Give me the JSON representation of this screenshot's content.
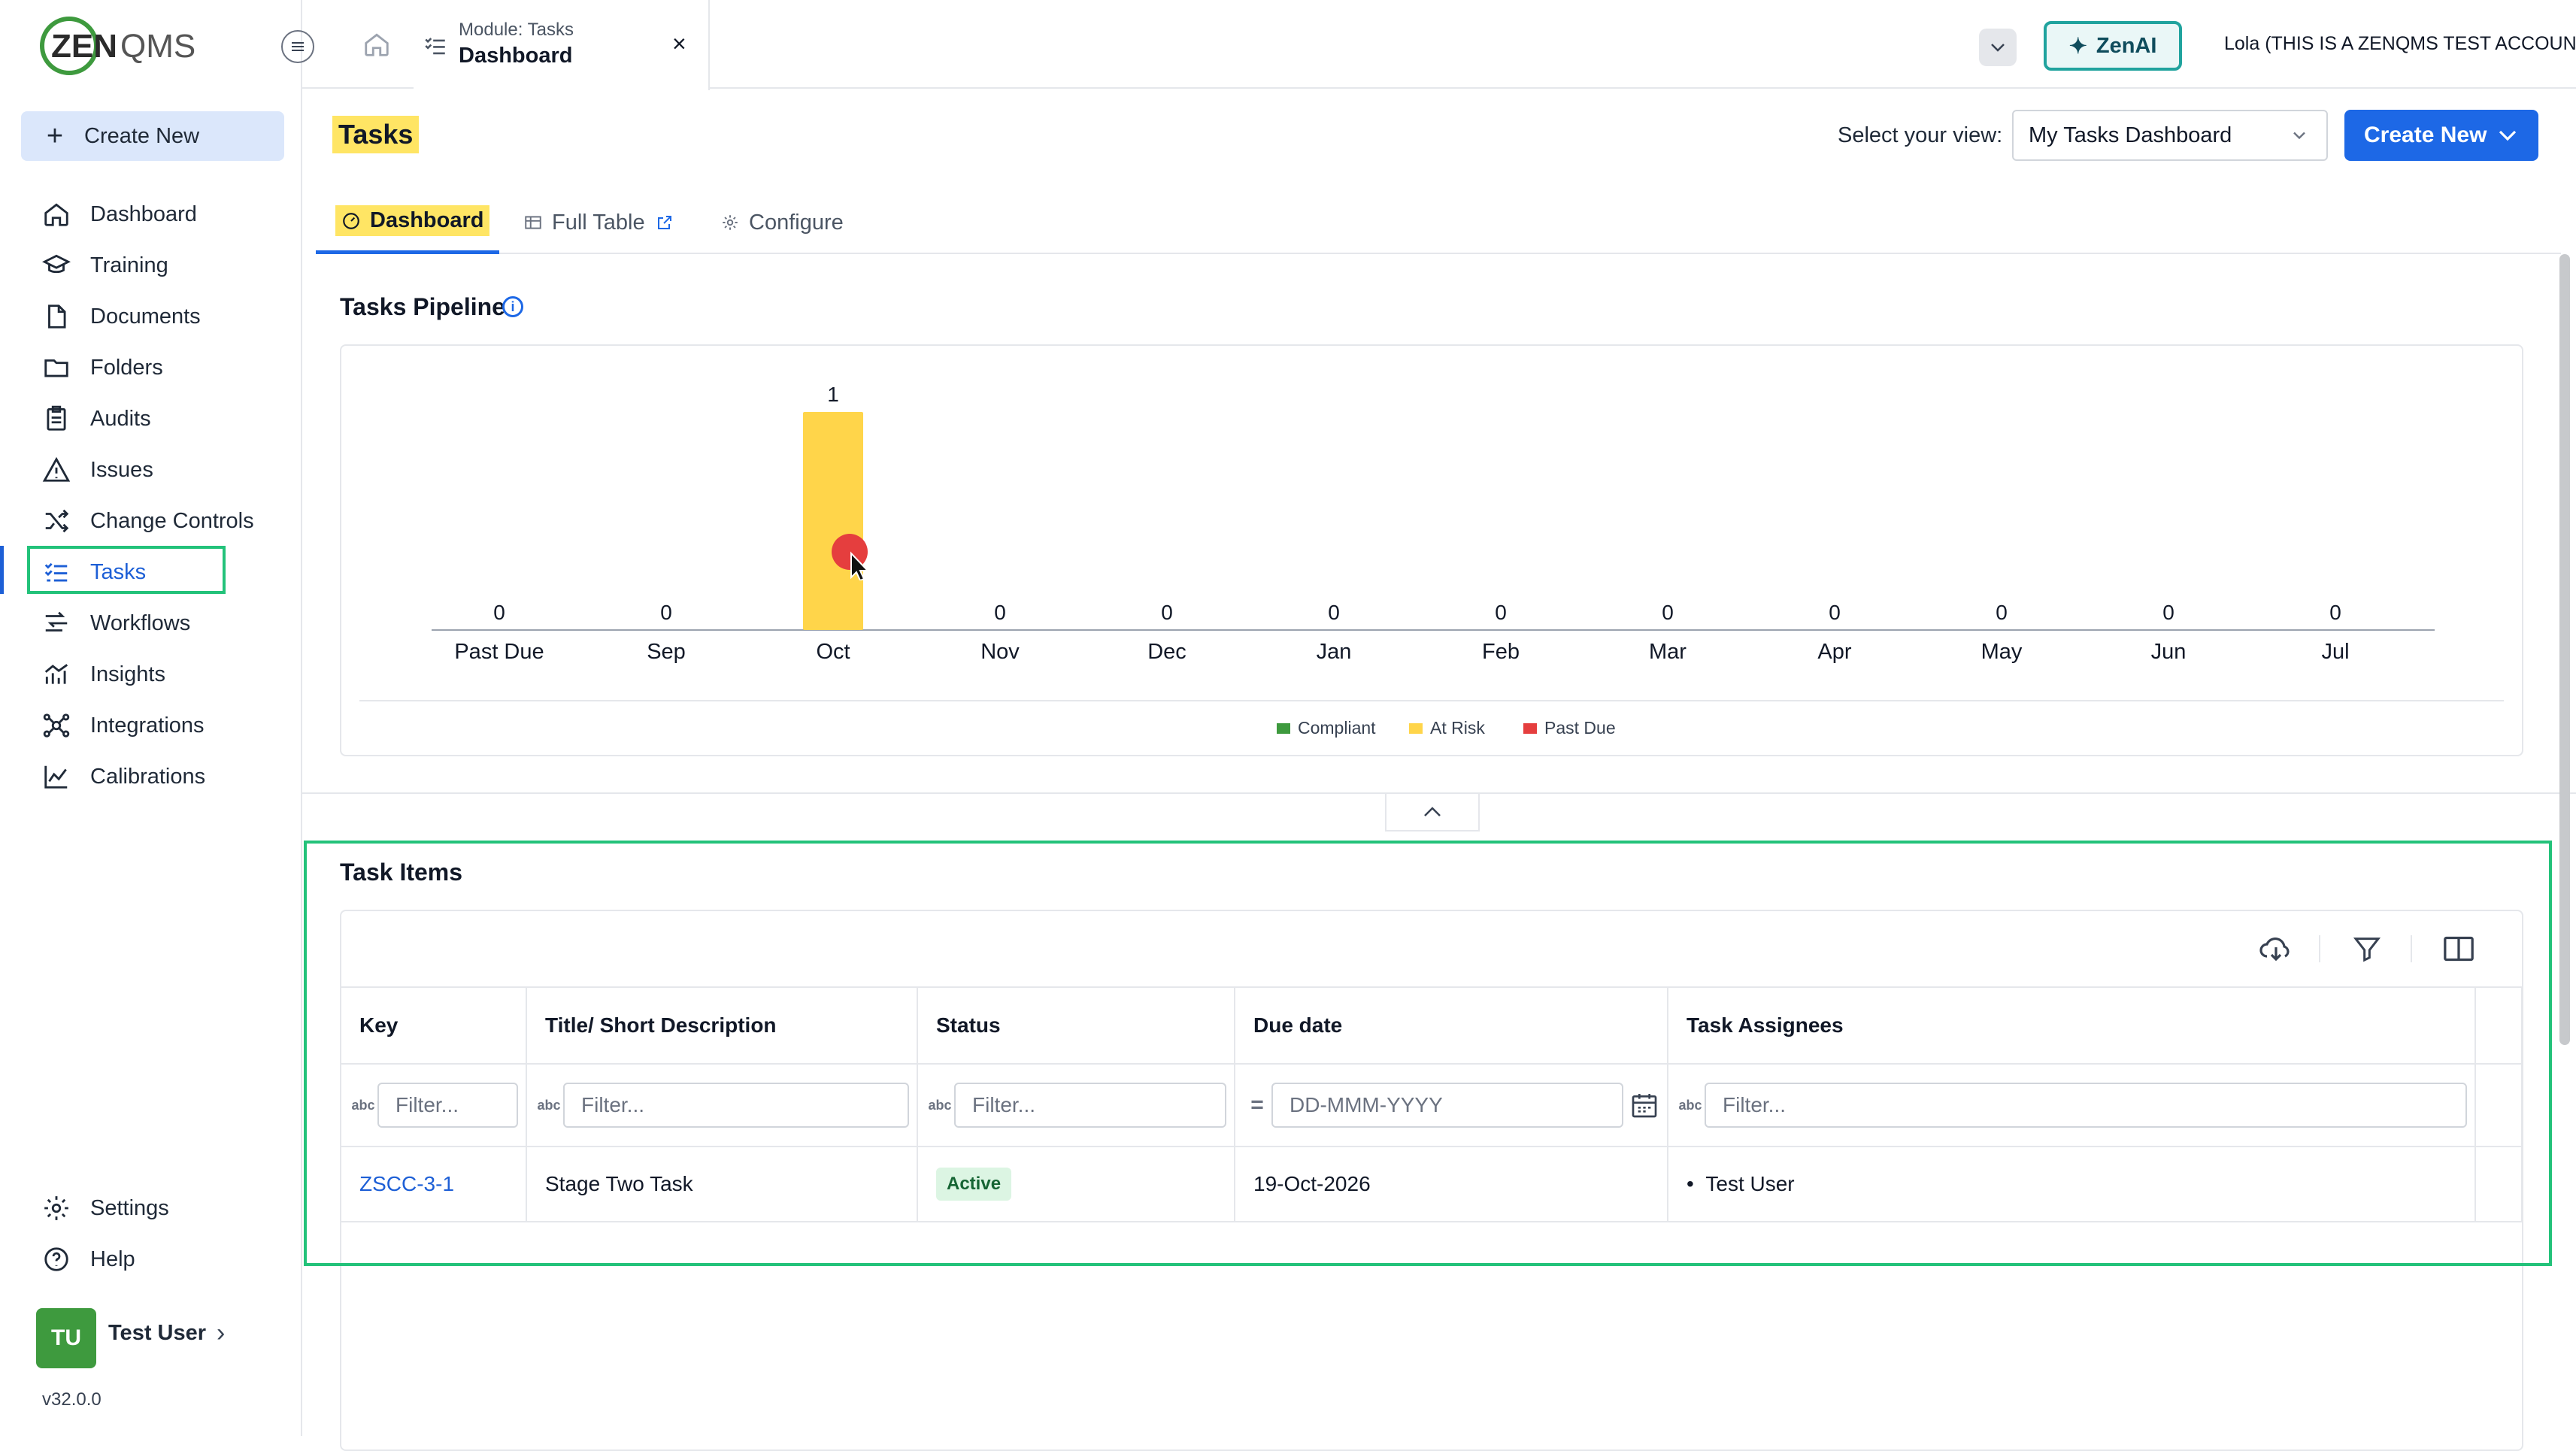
{
  "app": {
    "logo_text": "ZENQMS",
    "version": "v32.0.0"
  },
  "sidebar": {
    "create_new": "Create New",
    "items": [
      {
        "label": "Dashboard",
        "icon": "home-icon"
      },
      {
        "label": "Training",
        "icon": "graduation-cap-icon"
      },
      {
        "label": "Documents",
        "icon": "document-icon"
      },
      {
        "label": "Folders",
        "icon": "folder-icon"
      },
      {
        "label": "Audits",
        "icon": "clipboard-icon"
      },
      {
        "label": "Issues",
        "icon": "warning-icon"
      },
      {
        "label": "Change Controls",
        "icon": "shuffle-icon"
      },
      {
        "label": "Tasks",
        "icon": "task-list-icon",
        "active": true
      },
      {
        "label": "Workflows",
        "icon": "workflow-icon"
      },
      {
        "label": "Insights",
        "icon": "insights-icon"
      },
      {
        "label": "Integrations",
        "icon": "integrations-icon"
      },
      {
        "label": "Calibrations",
        "icon": "calibration-chart-icon"
      }
    ],
    "settings": "Settings",
    "help": "Help",
    "user": {
      "initials": "TU",
      "name": "Test User"
    }
  },
  "topbar": {
    "tab_module": "Module: Tasks",
    "tab_name": "Dashboard",
    "zenai": "ZenAI",
    "account": "Lola (THIS IS A ZENQMS TEST ACCOUNT)"
  },
  "header": {
    "title": "Tasks",
    "view_label": "Select your view:",
    "view_value": "My Tasks Dashboard",
    "create_new": "Create New"
  },
  "tabs": [
    {
      "label": "Dashboard",
      "active": true
    },
    {
      "label": "Full Table"
    },
    {
      "label": "Configure"
    }
  ],
  "pipeline": {
    "title": "Tasks Pipeline"
  },
  "chart_data": {
    "type": "bar",
    "categories": [
      "Past Due",
      "Sep",
      "Oct",
      "Nov",
      "Dec",
      "Jan",
      "Feb",
      "Mar",
      "Apr",
      "May",
      "Jun",
      "Jul"
    ],
    "series": [
      {
        "name": "Compliant",
        "color": "#3e9a3e",
        "values": [
          0,
          0,
          0,
          0,
          0,
          0,
          0,
          0,
          0,
          0,
          0,
          0
        ]
      },
      {
        "name": "At Risk",
        "color": "#ffd54a",
        "values": [
          0,
          0,
          1,
          0,
          0,
          0,
          0,
          0,
          0,
          0,
          0,
          0
        ]
      },
      {
        "name": "Past Due",
        "color": "#e53e3e",
        "values": [
          0,
          0,
          0,
          0,
          0,
          0,
          0,
          0,
          0,
          0,
          0,
          0
        ]
      }
    ],
    "totals": [
      0,
      0,
      1,
      0,
      0,
      0,
      0,
      0,
      0,
      0,
      0,
      0
    ],
    "ylim": [
      0,
      1
    ],
    "legend": "bottom-center",
    "grid": false
  },
  "task_items": {
    "title": "Task Items",
    "columns": [
      "Key",
      "Title/ Short Description",
      "Status",
      "Due date",
      "Task Assignees"
    ],
    "filter_placeholder": "Filter...",
    "date_placeholder": "DD-MMM-YYYY",
    "rows": [
      {
        "key": "ZSCC-3-1",
        "title": "Stage Two Task",
        "status": "Active",
        "due": "19-Oct-2026",
        "assignee": "Test User"
      }
    ]
  }
}
